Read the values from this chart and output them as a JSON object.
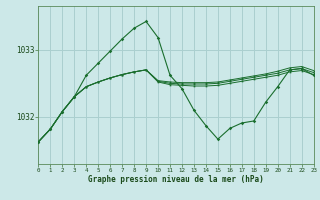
{
  "xlabel": "Graphe pression niveau de la mer (hPa)",
  "bg_color": "#cce8e8",
  "grid_color": "#aacfcf",
  "line_color": "#1a6e2e",
  "yticks": [
    1032,
    1033
  ],
  "ylim": [
    1031.3,
    1033.65
  ],
  "xlim": [
    0,
    23
  ],
  "hours": [
    0,
    1,
    2,
    3,
    4,
    5,
    6,
    7,
    8,
    9,
    10,
    11,
    12,
    13,
    14,
    15,
    16,
    17,
    18,
    19,
    20,
    21,
    22,
    23
  ],
  "spike_line": [
    1031.63,
    1031.82,
    1032.08,
    1032.3,
    1032.62,
    1032.8,
    1032.98,
    1033.16,
    1033.32,
    1033.42,
    1033.18,
    1032.62,
    1032.42,
    1032.1,
    1031.87,
    1031.67,
    1031.83,
    1031.91,
    1031.94,
    1032.22,
    1032.45,
    1032.7,
    1032.72,
    1032.62
  ],
  "flat1": [
    1031.63,
    1031.82,
    1032.08,
    1032.3,
    1032.45,
    1032.52,
    1032.58,
    1032.63,
    1032.67,
    1032.7,
    1032.52,
    1032.48,
    1032.47,
    1032.46,
    1032.46,
    1032.47,
    1032.5,
    1032.53,
    1032.56,
    1032.59,
    1032.62,
    1032.67,
    1032.69,
    1032.63
  ],
  "flat2": [
    1031.63,
    1031.82,
    1032.08,
    1032.3,
    1032.45,
    1032.52,
    1032.58,
    1032.63,
    1032.67,
    1032.7,
    1032.53,
    1032.5,
    1032.49,
    1032.49,
    1032.49,
    1032.5,
    1032.53,
    1032.56,
    1032.59,
    1032.62,
    1032.65,
    1032.7,
    1032.72,
    1032.66
  ],
  "flat3": [
    1031.63,
    1031.82,
    1032.08,
    1032.3,
    1032.45,
    1032.52,
    1032.58,
    1032.63,
    1032.67,
    1032.7,
    1032.54,
    1032.52,
    1032.51,
    1032.51,
    1032.51,
    1032.52,
    1032.55,
    1032.58,
    1032.61,
    1032.64,
    1032.68,
    1032.73,
    1032.75,
    1032.69
  ]
}
